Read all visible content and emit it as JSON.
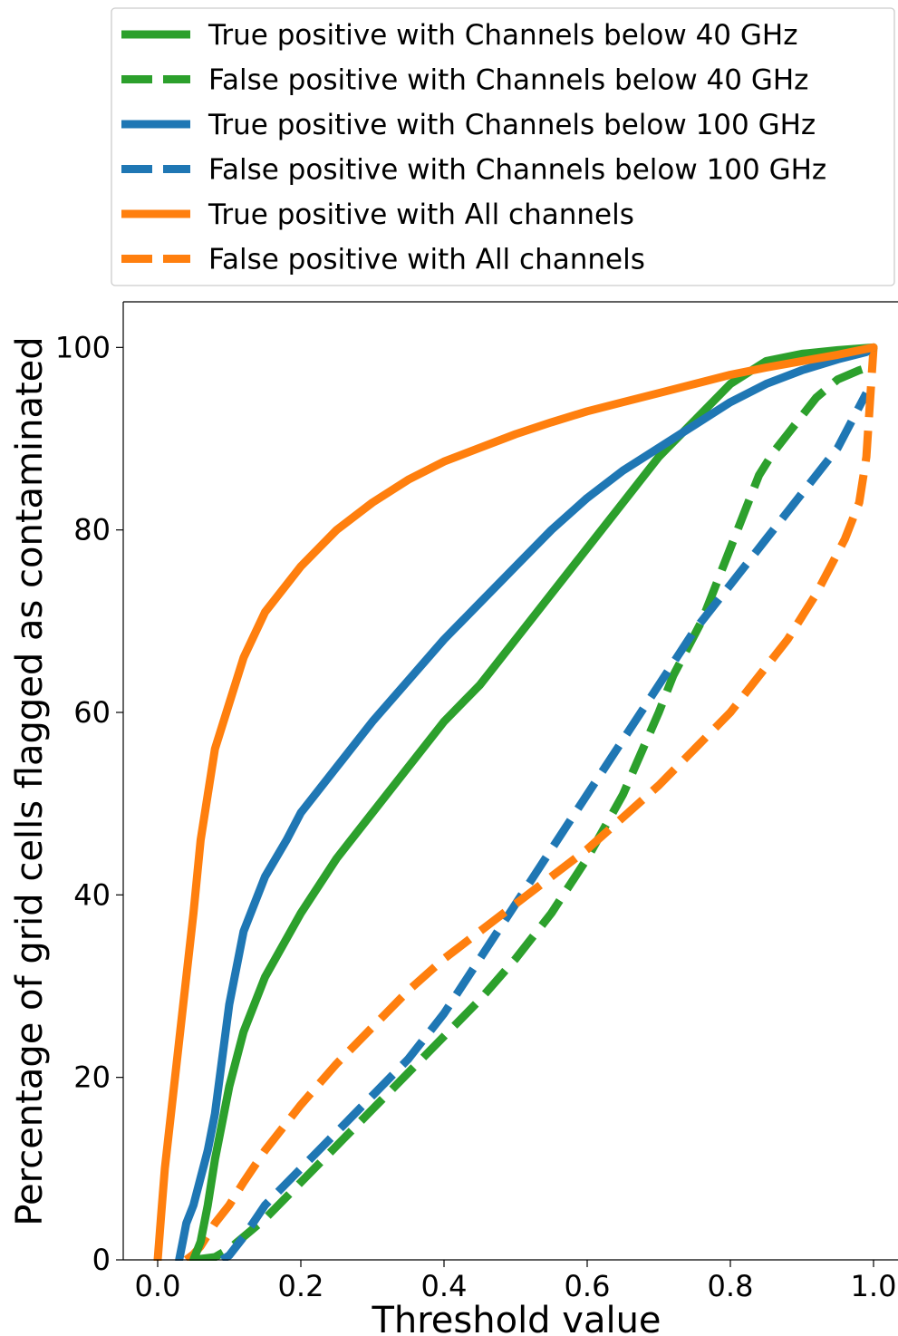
{
  "chart_data": {
    "type": "line",
    "title": "",
    "xlabel": "Threshold value",
    "ylabel": "Percentage of grid cells flagged as contaminated",
    "xlim": [
      -0.05,
      1.04
    ],
    "ylim": [
      0,
      105
    ],
    "xticks": [
      "0.0",
      "0.2",
      "0.4",
      "0.6",
      "0.8",
      "1.0"
    ],
    "yticks": [
      "0",
      "20",
      "40",
      "60",
      "80",
      "100"
    ],
    "grid": false,
    "legend_position": "top, above plot",
    "series": [
      {
        "name": "True positive with Channels below 40 GHz",
        "color": "#2ca02c",
        "style": "solid",
        "x": [
          0.05,
          0.06,
          0.07,
          0.08,
          0.09,
          0.1,
          0.12,
          0.15,
          0.2,
          0.25,
          0.3,
          0.35,
          0.4,
          0.45,
          0.5,
          0.55,
          0.6,
          0.65,
          0.7,
          0.75,
          0.8,
          0.85,
          0.9,
          0.95,
          1.0
        ],
        "y": [
          0,
          2,
          6,
          11,
          15,
          19,
          25,
          31,
          38,
          44,
          49,
          54,
          59,
          63,
          68,
          73,
          78,
          83,
          88,
          92,
          96,
          98.5,
          99.3,
          99.7,
          100
        ]
      },
      {
        "name": "False positive with Channels below 40 GHz",
        "color": "#2ca02c",
        "style": "dashed",
        "x": [
          0.05,
          0.08,
          0.1,
          0.15,
          0.2,
          0.25,
          0.3,
          0.35,
          0.4,
          0.45,
          0.5,
          0.55,
          0.6,
          0.65,
          0.7,
          0.72,
          0.74,
          0.76,
          0.78,
          0.8,
          0.82,
          0.84,
          0.86,
          0.88,
          0.9,
          0.92,
          0.95,
          0.98,
          1.0
        ],
        "y": [
          0,
          0.3,
          1.2,
          4.5,
          8.5,
          12.5,
          16.5,
          20.5,
          24.5,
          28.5,
          33,
          38,
          44,
          51,
          60,
          64,
          67,
          70,
          74,
          78,
          82,
          86,
          88.5,
          90.5,
          92.5,
          94.5,
          96.5,
          97.5,
          98
        ]
      },
      {
        "name": "True positive with Channels below 100 GHz",
        "color": "#1f77b4",
        "style": "solid",
        "x": [
          0.03,
          0.035,
          0.04,
          0.05,
          0.06,
          0.07,
          0.08,
          0.09,
          0.1,
          0.12,
          0.15,
          0.18,
          0.2,
          0.25,
          0.3,
          0.35,
          0.4,
          0.45,
          0.5,
          0.55,
          0.6,
          0.65,
          0.7,
          0.75,
          0.8,
          0.85,
          0.9,
          0.95,
          0.99
        ],
        "y": [
          0,
          2,
          4,
          6,
          9,
          12,
          16,
          22,
          28,
          36,
          42,
          46,
          49,
          54,
          59,
          63.5,
          68,
          72,
          76,
          80,
          83.5,
          86.5,
          89,
          91.5,
          94,
          96,
          97.5,
          98.7,
          99.5
        ]
      },
      {
        "name": "False positive with Channels below 100 GHz",
        "color": "#1f77b4",
        "style": "dashed",
        "x": [
          0.09,
          0.1,
          0.12,
          0.15,
          0.2,
          0.25,
          0.3,
          0.35,
          0.4,
          0.45,
          0.5,
          0.55,
          0.6,
          0.65,
          0.7,
          0.75,
          0.8,
          0.85,
          0.9,
          0.95,
          0.99
        ],
        "y": [
          0,
          0.5,
          2.5,
          6,
          10,
          14,
          18,
          22,
          27,
          33,
          39,
          45,
          51,
          57,
          63,
          69,
          74,
          79,
          84,
          89,
          95
        ]
      },
      {
        "name": "True positive with All channels",
        "color": "#ff7f0e",
        "style": "solid",
        "x": [
          0.0,
          0.005,
          0.01,
          0.02,
          0.03,
          0.04,
          0.05,
          0.06,
          0.07,
          0.08,
          0.1,
          0.12,
          0.15,
          0.2,
          0.25,
          0.3,
          0.35,
          0.4,
          0.45,
          0.5,
          0.55,
          0.6,
          0.65,
          0.7,
          0.75,
          0.8,
          0.85,
          0.9,
          0.95,
          1.0
        ],
        "y": [
          0,
          5,
          10,
          17,
          24,
          31,
          38,
          46,
          51,
          56,
          61,
          66,
          71,
          76,
          80,
          83,
          85.5,
          87.5,
          89,
          90.5,
          91.8,
          93,
          94,
          95,
          96,
          97,
          97.8,
          98.5,
          99.2,
          100
        ]
      },
      {
        "name": "False positive with All channels",
        "color": "#ff7f0e",
        "style": "dashed",
        "x": [
          0.04,
          0.05,
          0.06,
          0.08,
          0.1,
          0.12,
          0.15,
          0.2,
          0.25,
          0.3,
          0.35,
          0.4,
          0.45,
          0.5,
          0.55,
          0.6,
          0.65,
          0.7,
          0.75,
          0.8,
          0.85,
          0.88,
          0.9,
          0.92,
          0.94,
          0.96,
          0.98,
          0.99,
          1.0
        ],
        "y": [
          0,
          0.6,
          1.5,
          4,
          6,
          8.5,
          12,
          17,
          21.5,
          25.5,
          29.5,
          33,
          36,
          39,
          42,
          45,
          48.5,
          52,
          56,
          60,
          65,
          68,
          70.5,
          73,
          76,
          79,
          83,
          88,
          100
        ]
      }
    ]
  }
}
